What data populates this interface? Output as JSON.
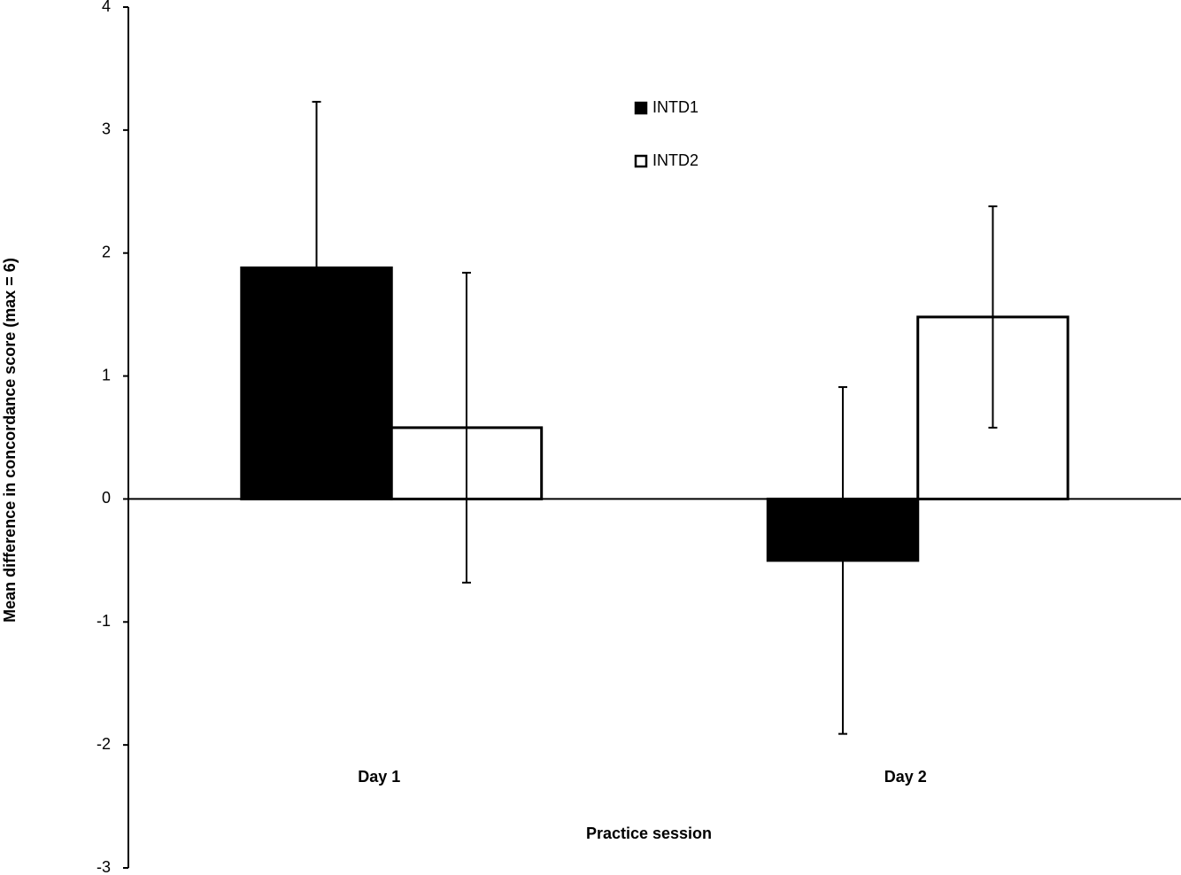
{
  "chart_data": {
    "type": "bar",
    "y_label": "Mean difference in concordance score (max = 6)",
    "x_label": "Practice session",
    "categories": [
      "Day 1",
      "Day 2"
    ],
    "series": [
      {
        "name": "INTD1",
        "color": "#000000",
        "values": [
          1.88,
          -0.5
        ],
        "errors": [
          1.35,
          1.41
        ]
      },
      {
        "name": "INTD2",
        "color": "#ffffff",
        "values": [
          0.58,
          1.48
        ],
        "errors": [
          1.26,
          0.9
        ]
      }
    ],
    "ylim": [
      -3,
      4
    ],
    "yticks": [
      -3,
      -2,
      -1,
      0,
      1,
      2,
      3,
      4
    ]
  }
}
